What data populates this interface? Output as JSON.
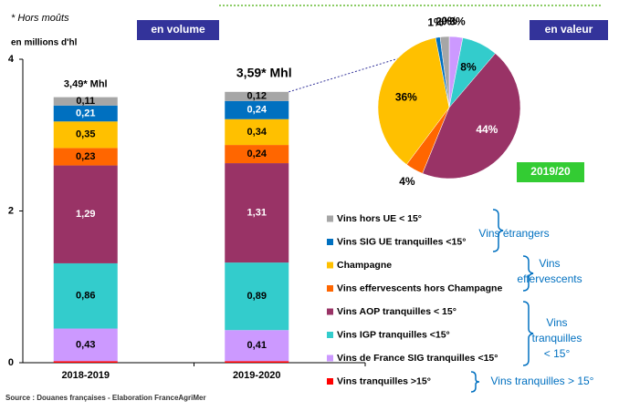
{
  "chart_data": [
    {
      "type": "stacked-bar",
      "note": "* Hors moûts",
      "y_label": "en millions d'hl",
      "tab_label": "en volume",
      "source": "Source : Douanes françaises - Elaboration FranceAgriMer",
      "categories": [
        "2018-2019",
        "2019-2020"
      ],
      "annotations": [
        "3,49* Mhl",
        "3,59* Mhl"
      ],
      "ylim": [
        0,
        4
      ],
      "yticks": [
        0,
        2,
        4
      ],
      "series": [
        {
          "name": "Vins tranquilles >15°",
          "color": "#ff0000",
          "values": [
            0.02,
            0.02
          ]
        },
        {
          "name": "Vins de France SIG tranquilles <15°",
          "color": "#cc99ff",
          "values": [
            0.43,
            0.41
          ],
          "value_labels": [
            "0,43",
            "0,41"
          ],
          "label_color": "#000000"
        },
        {
          "name": "Vins IGP tranquilles <15°",
          "color": "#33cccc",
          "values": [
            0.86,
            0.89
          ],
          "value_labels": [
            "0,86",
            "0,89"
          ],
          "label_color": "#000000"
        },
        {
          "name": "Vins AOP tranquilles < 15°",
          "color": "#993366",
          "values": [
            1.29,
            1.31
          ],
          "value_labels": [
            "1,29",
            "1,31"
          ],
          "label_color": "#ffffff"
        },
        {
          "name": "Vins effervescents hors Champagne",
          "color": "#ff6600",
          "values": [
            0.23,
            0.24
          ],
          "value_labels": [
            "0,23",
            "0,24"
          ],
          "label_color": "#000000"
        },
        {
          "name": "Champagne",
          "color": "#ffc000",
          "values": [
            0.35,
            0.34
          ],
          "value_labels": [
            "0,35",
            "0,34"
          ],
          "label_color": "#000000"
        },
        {
          "name": "Vins SIG UE tranquilles <15°",
          "color": "#0070c0",
          "values": [
            0.21,
            0.24
          ],
          "value_labels": [
            "0,21",
            "0,24"
          ],
          "label_color": "#ffffff"
        },
        {
          "name": "Vins hors UE < 15°",
          "color": "#a6a6a6",
          "values": [
            0.11,
            0.12
          ],
          "value_labels": [
            "0,11",
            "0,12"
          ],
          "label_color": "#000000"
        }
      ],
      "legend_groups": [
        {
          "lines": [
            "Vins étrangers"
          ]
        },
        {
          "lines": [
            "Vins",
            "effervescents"
          ]
        },
        {
          "lines": [
            "Vins",
            "tranquilles",
            "< 15°"
          ]
        },
        {
          "lines": [
            "Vins tranquilles > 15°"
          ]
        }
      ]
    },
    {
      "type": "pie",
      "tab_label": "en valeur",
      "period": "2019/20",
      "categories": [
        "Vins tranquilles >15°",
        "Vins de France SIG tranquilles <15°",
        "Vins IGP tranquilles <15°",
        "Vins AOP tranquilles < 15°",
        "Vins effervescents hors Champagne",
        "Champagne",
        "Vins SIG UE tranquilles <15°",
        "Vins hors UE < 15°"
      ],
      "colors": [
        "#ff0000",
        "#cc99ff",
        "#33cccc",
        "#993366",
        "#ff6600",
        "#ffc000",
        "#0070c0",
        "#a6a6a6"
      ],
      "values": [
        0,
        3,
        8,
        44,
        4,
        36,
        1,
        2
      ],
      "value_labels": [
        "0%",
        "3%",
        "8%",
        "44%",
        "4%",
        "36%",
        "1%",
        "2%"
      ]
    }
  ]
}
